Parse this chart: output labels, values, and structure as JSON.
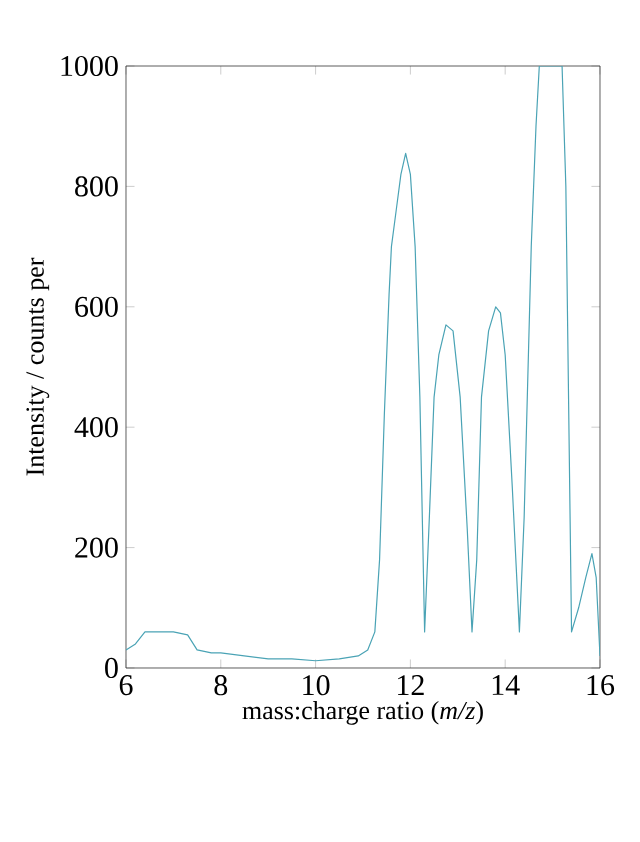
{
  "chart_data": {
    "type": "line",
    "xlabel": "mass:charge ratio (*m/z*)",
    "ylabel": "Intensity / counts per",
    "xlim": [
      6,
      16
    ],
    "ylim": [
      0,
      1000
    ],
    "xticks": [
      6,
      8,
      10,
      12,
      14,
      16
    ],
    "yticks": [
      0,
      200,
      400,
      600,
      800,
      1000
    ],
    "grid": false,
    "marker": "none",
    "line_style": "solid",
    "series": [
      {
        "color": "#4aa3b5",
        "x": [
          6.0,
          6.2,
          6.4,
          6.6,
          7.0,
          7.3,
          7.5,
          7.8,
          8.0,
          8.5,
          9.0,
          9.5,
          10.0,
          10.5,
          10.9,
          11.1,
          11.25,
          11.35,
          11.45,
          11.55,
          11.6,
          11.7,
          11.8,
          11.9,
          12.0,
          12.1,
          12.2,
          12.3,
          12.4,
          12.5,
          12.6,
          12.75,
          12.9,
          13.05,
          13.2,
          13.3,
          13.4,
          13.5,
          13.65,
          13.8,
          13.9,
          14.0,
          14.15,
          14.3,
          14.4,
          14.55,
          14.65,
          14.72,
          15.2,
          15.28,
          15.4,
          15.55,
          15.7,
          15.83,
          15.92,
          16.0
        ],
        "values": [
          30,
          40,
          60,
          60,
          60,
          55,
          30,
          25,
          25,
          20,
          15,
          15,
          12,
          15,
          20,
          30,
          60,
          180,
          420,
          620,
          700,
          760,
          820,
          855,
          820,
          700,
          450,
          60,
          250,
          450,
          520,
          570,
          560,
          450,
          230,
          60,
          180,
          450,
          560,
          600,
          590,
          520,
          300,
          60,
          250,
          700,
          900,
          1000,
          1000,
          800,
          60,
          100,
          150,
          190,
          150,
          20
        ]
      }
    ]
  }
}
